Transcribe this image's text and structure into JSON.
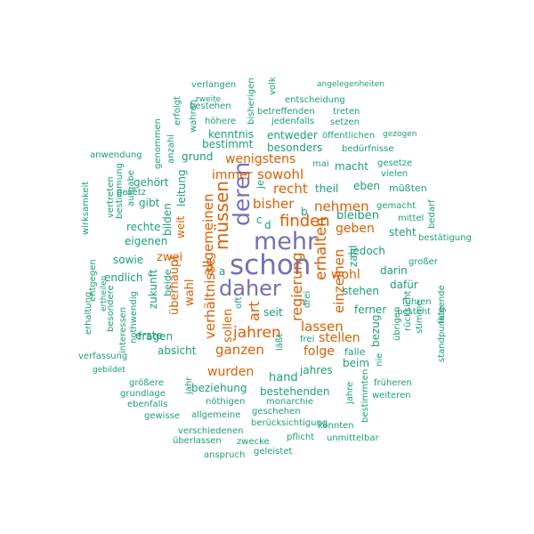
{
  "colors": {
    "large": "#7570b3",
    "medium": "#d95f02",
    "small": "#1b9e77"
  },
  "words": [
    {
      "text": "schon",
      "c": "large"
    },
    {
      "text": "mehr",
      "c": "large"
    },
    {
      "text": "daher",
      "c": "large"
    },
    {
      "text": "deren",
      "c": "large"
    },
    {
      "text": "müssen",
      "c": "medium"
    },
    {
      "text": "finden",
      "c": "medium"
    },
    {
      "text": "jahren",
      "c": "medium"
    },
    {
      "text": "erhalten",
      "c": "medium"
    },
    {
      "text": "regierung",
      "c": "medium"
    },
    {
      "text": "allgemeinen",
      "c": "medium"
    },
    {
      "text": "verhältnisse",
      "c": "medium"
    },
    {
      "text": "einzelnen",
      "c": "medium"
    },
    {
      "text": "lassen",
      "c": "medium"
    },
    {
      "text": "nehmen",
      "c": "medium"
    },
    {
      "text": "bisher",
      "c": "medium"
    },
    {
      "text": "recht",
      "c": "medium"
    },
    {
      "text": "sowohl",
      "c": "medium"
    },
    {
      "text": "wenigstens",
      "c": "medium"
    },
    {
      "text": "immer",
      "c": "medium"
    },
    {
      "text": "art",
      "c": "medium"
    },
    {
      "text": "ganzen",
      "c": "medium"
    },
    {
      "text": "wurden",
      "c": "medium"
    },
    {
      "text": "stellen",
      "c": "medium"
    },
    {
      "text": "folge",
      "c": "medium"
    },
    {
      "text": "wohl",
      "c": "medium"
    },
    {
      "text": "geben",
      "c": "medium"
    },
    {
      "text": "überhaupt",
      "c": "medium"
    },
    {
      "text": "zwei",
      "c": "medium"
    },
    {
      "text": "weit",
      "c": "medium"
    },
    {
      "text": "wahl",
      "c": "medium"
    },
    {
      "text": "sollen",
      "c": "medium"
    },
    {
      "text": "bleiben",
      "c": "small"
    },
    {
      "text": "stehen",
      "c": "small"
    },
    {
      "text": "seit",
      "c": "small"
    },
    {
      "text": "hand",
      "c": "small"
    },
    {
      "text": "jahres",
      "c": "small"
    },
    {
      "text": "beziehung",
      "c": "small"
    },
    {
      "text": "bestehenden",
      "c": "small"
    },
    {
      "text": "fragen",
      "c": "small"
    },
    {
      "text": "erste",
      "c": "small"
    },
    {
      "text": "absicht",
      "c": "small"
    },
    {
      "text": "macht",
      "c": "small"
    },
    {
      "text": "theil",
      "c": "small"
    },
    {
      "text": "eben",
      "c": "small"
    },
    {
      "text": "grund",
      "c": "small"
    },
    {
      "text": "kenntnis",
      "c": "small"
    },
    {
      "text": "bestimmt",
      "c": "small"
    },
    {
      "text": "entweder",
      "c": "small"
    },
    {
      "text": "besonders",
      "c": "small"
    },
    {
      "text": "jedoch",
      "c": "small"
    },
    {
      "text": "darin",
      "c": "small"
    },
    {
      "text": "dafür",
      "c": "small"
    },
    {
      "text": "ferner",
      "c": "small"
    },
    {
      "text": "steht",
      "c": "small"
    },
    {
      "text": "beim",
      "c": "small"
    },
    {
      "text": "falle",
      "c": "small"
    },
    {
      "text": "gehört",
      "c": "small"
    },
    {
      "text": "gibt",
      "c": "small"
    },
    {
      "text": "rechte",
      "c": "small"
    },
    {
      "text": "eigenen",
      "c": "small"
    },
    {
      "text": "sowie",
      "c": "small"
    },
    {
      "text": "endlich",
      "c": "small"
    },
    {
      "text": "bilden",
      "c": "small"
    },
    {
      "text": "leitung",
      "c": "small"
    },
    {
      "text": "zukunft",
      "c": "small"
    },
    {
      "text": "beide",
      "c": "small"
    },
    {
      "text": "a",
      "c": "small"
    },
    {
      "text": "b",
      "c": "small"
    },
    {
      "text": "c",
      "c": "small"
    },
    {
      "text": "d",
      "c": "small"
    },
    {
      "text": "je",
      "c": "small"
    },
    {
      "text": "zahl",
      "c": "small"
    },
    {
      "text": "oft",
      "c": "small"
    },
    {
      "text": "drei",
      "c": "small"
    },
    {
      "text": "frei",
      "c": "small"
    },
    {
      "text": "läßt",
      "c": "small"
    },
    {
      "text": "mai",
      "c": "small"
    },
    {
      "text": "gesetze",
      "c": "small"
    },
    {
      "text": "vielen",
      "c": "small"
    },
    {
      "text": "müßten",
      "c": "small"
    },
    {
      "text": "gemacht",
      "c": "small"
    },
    {
      "text": "mittel",
      "c": "small"
    },
    {
      "text": "bedarf",
      "c": "small"
    },
    {
      "text": "bestätigung",
      "c": "small"
    },
    {
      "text": "großer",
      "c": "small"
    },
    {
      "text": "folgende",
      "c": "small"
    },
    {
      "text": "führen",
      "c": "small"
    },
    {
      "text": "besteht",
      "c": "small"
    },
    {
      "text": "stimme",
      "c": "small"
    },
    {
      "text": "standpunkte",
      "c": "small"
    },
    {
      "text": "rücksicht",
      "c": "small"
    },
    {
      "text": "übrigen",
      "c": "small"
    },
    {
      "text": "bezug",
      "c": "small"
    },
    {
      "text": "nie",
      "c": "small"
    },
    {
      "text": "früheren",
      "c": "small"
    },
    {
      "text": "weiteren",
      "c": "small"
    },
    {
      "text": "jahre",
      "c": "small"
    },
    {
      "text": "bestimmten",
      "c": "small"
    },
    {
      "text": "könnten",
      "c": "small"
    },
    {
      "text": "unmittelbar",
      "c": "small"
    },
    {
      "text": "pflicht",
      "c": "small"
    },
    {
      "text": "geleistet",
      "c": "small"
    },
    {
      "text": "anspruch",
      "c": "small"
    },
    {
      "text": "zwecke",
      "c": "small"
    },
    {
      "text": "überlassen",
      "c": "small"
    },
    {
      "text": "verschiedenen",
      "c": "small"
    },
    {
      "text": "geschehen",
      "c": "small"
    },
    {
      "text": "berücksichtigung",
      "c": "small"
    },
    {
      "text": "monarchie",
      "c": "small"
    },
    {
      "text": "nöthigen",
      "c": "small"
    },
    {
      "text": "allgemeine",
      "c": "small"
    },
    {
      "text": "gewisse",
      "c": "small"
    },
    {
      "text": "ebenfalls",
      "c": "small"
    },
    {
      "text": "grundlage",
      "c": "small"
    },
    {
      "text": "größere",
      "c": "small"
    },
    {
      "text": "gebildet",
      "c": "small"
    },
    {
      "text": "verfassung",
      "c": "small"
    },
    {
      "text": "jahr",
      "c": "small"
    },
    {
      "text": "interessen",
      "c": "small"
    },
    {
      "text": "nothwendig",
      "c": "small"
    },
    {
      "text": "besondere",
      "c": "small"
    },
    {
      "text": "entgegen",
      "c": "small"
    },
    {
      "text": "ertheilen",
      "c": "small"
    },
    {
      "text": "erhaltung",
      "c": "small"
    },
    {
      "text": "wirksamkeit",
      "c": "small"
    },
    {
      "text": "vertreten",
      "c": "small"
    },
    {
      "text": "bestimmung",
      "c": "small"
    },
    {
      "text": "aufgabe",
      "c": "small"
    },
    {
      "text": "gesetz",
      "c": "small"
    },
    {
      "text": "anwendung",
      "c": "small"
    },
    {
      "text": "genommen",
      "c": "small"
    },
    {
      "text": "anzahl",
      "c": "small"
    },
    {
      "text": "erfolgt",
      "c": "small"
    },
    {
      "text": "wahren",
      "c": "small"
    },
    {
      "text": "höhere",
      "c": "small"
    },
    {
      "text": "bestehen",
      "c": "small"
    },
    {
      "text": "zweite",
      "c": "small"
    },
    {
      "text": "verlangen",
      "c": "small"
    },
    {
      "text": "bisherigen",
      "c": "small"
    },
    {
      "text": "volk",
      "c": "small"
    },
    {
      "text": "entscheidung",
      "c": "small"
    },
    {
      "text": "betreffenden",
      "c": "small"
    },
    {
      "text": "jedenfalls",
      "c": "small"
    },
    {
      "text": "öffentlichen",
      "c": "small"
    },
    {
      "text": "setzen",
      "c": "small"
    },
    {
      "text": "treten",
      "c": "small"
    },
    {
      "text": "angelegenheiten",
      "c": "small"
    },
    {
      "text": "gezogen",
      "c": "small"
    },
    {
      "text": "bedürfnisse",
      "c": "small"
    }
  ]
}
